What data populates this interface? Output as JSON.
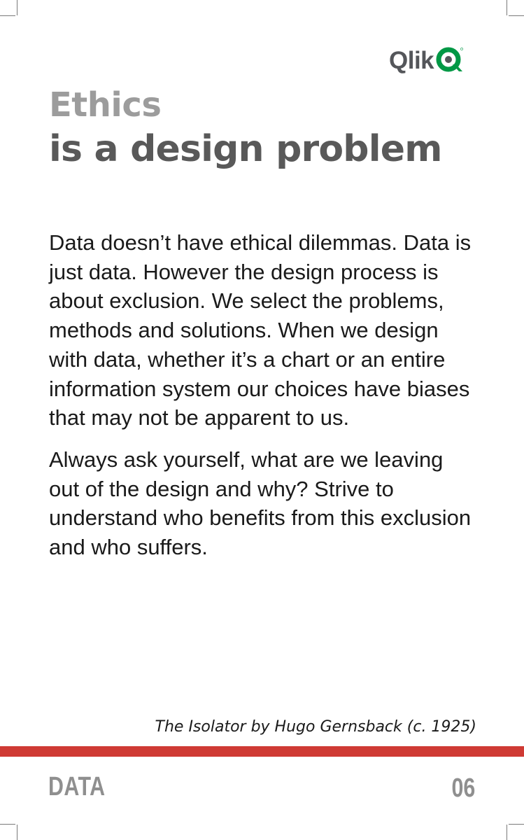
{
  "brand": {
    "logo_text": "Qlik",
    "logo_icon": "qlik-q-icon",
    "logo_green": "#009845",
    "logo_gray": "#54565a"
  },
  "title": {
    "line1": "Ethics",
    "line2": "is a design problem"
  },
  "body": {
    "paragraphs": [
      "Data doesn’t have ethical dilemmas. Data is just data. However the design process is about exclusion. We select the problems, methods and solutions. When we design with data, whether it’s a chart or an entire information system our choices have biases that may not be apparent to us.",
      "Always ask yourself, what are we leaving out of the design and why? Strive to understand who benefits from this exclusion and who suffers."
    ]
  },
  "caption": "The Isolator by Hugo Gernsback (c. 1925)",
  "footer": {
    "category": "DATA",
    "page_number": "06",
    "bar_color": "#cf3a34"
  }
}
